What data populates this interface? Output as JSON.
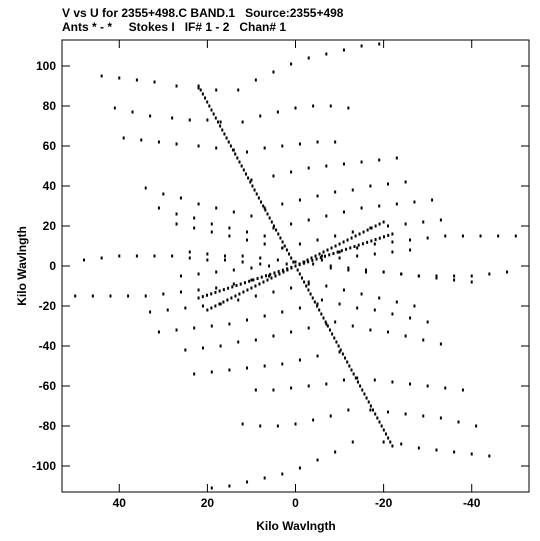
{
  "header": {
    "line1": "V vs U for 2355+498.C BAND.1   Source:2355+498",
    "line2": "Ants * - *     Stokes I   IF# 1 - 2   Chan# 1"
  },
  "chart_data": {
    "type": "scatter",
    "title": "V vs U for 2355+498.C BAND.1   Source:2355+498",
    "subtitle": "Ants * - *     Stokes I   IF# 1 - 2   Chan# 1",
    "xlabel": "Kilo Wavlngth",
    "ylabel": "Kilo Wavlngth",
    "xlim": [
      53,
      -53
    ],
    "ylim": [
      -113,
      113
    ],
    "x_reversed": true,
    "x_ticks": [
      "40",
      "20",
      "0",
      "-20",
      "-40"
    ],
    "x_tick_values": [
      40,
      20,
      0,
      -20,
      -40
    ],
    "y_ticks": [
      "100",
      "80",
      "60",
      "40",
      "20",
      "0",
      "-20",
      "-40",
      "-60",
      "-80",
      "-100"
    ],
    "y_tick_values": [
      100,
      80,
      60,
      40,
      20,
      0,
      -20,
      -40,
      -60,
      -80,
      -100
    ],
    "grid": false,
    "marker_color": "#000000",
    "tracks": [
      {
        "x": [
          44,
          40,
          36,
          32,
          27,
          22,
          18
        ],
        "y": [
          95,
          94,
          93,
          92,
          90,
          89,
          88
        ]
      },
      {
        "x": [
          41,
          37,
          33,
          28,
          24,
          20,
          17
        ],
        "y": [
          79,
          77,
          75,
          74,
          73,
          73,
          72
        ]
      },
      {
        "x": [
          39,
          35,
          31,
          27,
          22,
          18,
          14
        ],
        "y": [
          64,
          63,
          62,
          61,
          60,
          59,
          58
        ]
      },
      {
        "x": [
          34,
          30,
          26,
          22,
          18,
          14,
          10
        ],
        "y": [
          39,
          36,
          34,
          31,
          29,
          27,
          25
        ]
      },
      {
        "x": [
          31,
          27,
          23,
          19,
          15,
          11,
          7
        ],
        "y": [
          29,
          26,
          24,
          21,
          19,
          17,
          15
        ]
      },
      {
        "x": [
          27,
          23,
          19,
          15,
          11,
          7,
          3
        ],
        "y": [
          21,
          19,
          17,
          15,
          13,
          11,
          9
        ]
      },
      {
        "x": [
          13,
          9,
          5,
          1,
          -3,
          -7,
          -11,
          -15,
          -19
        ],
        "y": [
          88,
          93,
          97,
          101,
          104,
          106,
          108,
          110,
          111
        ]
      },
      {
        "x": [
          12,
          8,
          4,
          0,
          -4,
          -8,
          -12
        ],
        "y": [
          72,
          75,
          77,
          79,
          80,
          80,
          79
        ]
      },
      {
        "x": [
          11,
          7,
          3,
          -1,
          -5,
          -9
        ],
        "y": [
          57,
          59,
          60,
          61,
          62,
          62
        ]
      },
      {
        "x": [
          10,
          5,
          1,
          -3,
          -7,
          -11,
          -15,
          -19,
          -23
        ],
        "y": [
          43,
          45,
          47,
          49,
          50,
          51,
          52,
          53,
          54
        ]
      },
      {
        "x": [
          7,
          3,
          -1,
          -5,
          -9,
          -13,
          -17,
          -21,
          -25
        ],
        "y": [
          29,
          31,
          33,
          35,
          37,
          38,
          40,
          41,
          42
        ]
      },
      {
        "x": [
          5,
          1,
          -3,
          -7,
          -11,
          -15,
          -19,
          -23,
          -27,
          -31
        ],
        "y": [
          19,
          21,
          23,
          25,
          27,
          29,
          30,
          31,
          32,
          33
        ]
      },
      {
        "x": [
          3,
          -1,
          -5,
          -9,
          -13,
          -17,
          -21,
          -25,
          -29,
          -33
        ],
        "y": [
          9,
          11,
          13,
          15,
          17,
          19,
          20,
          21,
          22,
          23
        ]
      },
      {
        "x": [
          -20,
          -24,
          -28,
          -32,
          -36,
          -40,
          -44
        ],
        "y": [
          -88,
          -89,
          -91,
          -92,
          -93,
          -94,
          -95
        ]
      },
      {
        "x": [
          -17,
          -21,
          -25,
          -29,
          -33,
          -37,
          -41
        ],
        "y": [
          -72,
          -73,
          -74,
          -75,
          -76,
          -78,
          -80
        ]
      },
      {
        "x": [
          -14,
          -18,
          -22,
          -26,
          -30,
          -34,
          -38
        ],
        "y": [
          -56,
          -57,
          -58,
          -59,
          -60,
          -61,
          -62
        ]
      },
      {
        "x": [
          -9,
          -13,
          -17,
          -21,
          -25,
          -29,
          -33
        ],
        "y": [
          -28,
          -30,
          -32,
          -33,
          -35,
          -37,
          -39
        ]
      },
      {
        "x": [
          -6,
          -10,
          -14,
          -18,
          -22,
          -26,
          -30
        ],
        "y": [
          -17,
          -19,
          -21,
          -22,
          -24,
          -26,
          -28
        ]
      },
      {
        "x": [
          -3,
          -7,
          -11,
          -15,
          -19,
          -23,
          -27
        ],
        "y": [
          -8,
          -10,
          -12,
          -14,
          -16,
          -18,
          -20
        ]
      },
      {
        "x": [
          -13,
          -9,
          -5,
          -1,
          3,
          7,
          11,
          15,
          19
        ],
        "y": [
          -88,
          -93,
          -97,
          -101,
          -104,
          -106,
          -108,
          -110,
          -111
        ]
      },
      {
        "x": [
          -12,
          -8,
          -4,
          0,
          4,
          8,
          12
        ],
        "y": [
          -72,
          -75,
          -77,
          -79,
          -80,
          -80,
          -79
        ]
      },
      {
        "x": [
          -11,
          -7,
          -3,
          1,
          5,
          9
        ],
        "y": [
          -57,
          -59,
          -60,
          -61,
          -62,
          -62
        ]
      },
      {
        "x": [
          -10,
          -5,
          -1,
          3,
          7,
          11,
          15,
          19,
          23
        ],
        "y": [
          -43,
          -45,
          -47,
          -49,
          -50,
          -51,
          -52,
          -53,
          -54
        ]
      },
      {
        "x": [
          -7,
          -3,
          1,
          5,
          9,
          13,
          17,
          21,
          25
        ],
        "y": [
          -29,
          -31,
          -33,
          -35,
          -37,
          -38,
          -40,
          -41,
          -42
        ]
      },
      {
        "x": [
          -5,
          -1,
          3,
          7,
          11,
          15,
          19,
          23,
          27,
          31
        ],
        "y": [
          -19,
          -21,
          -23,
          -25,
          -27,
          -29,
          -30,
          -31,
          -32,
          -33
        ]
      },
      {
        "x": [
          -3,
          1,
          5,
          9,
          13,
          17,
          21,
          25,
          29,
          33
        ],
        "y": [
          -9,
          -11,
          -13,
          -15,
          -17,
          -19,
          -20,
          -21,
          -22,
          -23
        ]
      },
      {
        "x": [
          -6,
          -10,
          -14,
          -18,
          -22,
          -26,
          -30,
          -34,
          -38,
          -42,
          -46,
          -50
        ],
        "y": [
          5,
          7,
          9,
          11,
          12,
          13,
          14,
          15,
          15,
          15,
          15,
          15
        ]
      },
      {
        "x": [
          -8,
          -12,
          -16,
          -20,
          -24,
          -28,
          -32,
          -36,
          -40,
          -44,
          -48
        ],
        "y": [
          -1,
          -2,
          -3,
          -3,
          -4,
          -5,
          -5,
          -5,
          -5,
          -4,
          -3
        ]
      },
      {
        "x": [
          6,
          10,
          14,
          18,
          22,
          26,
          30,
          34,
          38,
          42,
          46,
          50
        ],
        "y": [
          -5,
          -7,
          -9,
          -11,
          -12,
          -13,
          -14,
          -15,
          -15,
          -15,
          -15,
          -15
        ]
      },
      {
        "x": [
          8,
          12,
          16,
          20,
          24,
          28,
          32,
          36,
          40,
          44,
          48
        ],
        "y": [
          1,
          2,
          3,
          3,
          4,
          5,
          5,
          5,
          5,
          4,
          3
        ]
      },
      {
        "x": [
          24,
          20,
          16,
          12,
          8,
          4,
          0,
          -4,
          -8,
          -12,
          -16,
          -20,
          -24,
          -28,
          -32,
          -36,
          -40
        ],
        "y": [
          7,
          6,
          5,
          5,
          4,
          3,
          2,
          1,
          0,
          -1,
          -2,
          -3,
          -4,
          -5,
          -6,
          -7,
          -8
        ]
      },
      {
        "x": [
          26,
          22,
          18,
          14,
          10,
          6,
          2,
          -2,
          -6,
          -10,
          -14,
          -18,
          -22,
          -26
        ],
        "y": [
          -5,
          -4,
          -3,
          -2,
          -1,
          0,
          1,
          2,
          3,
          4,
          5,
          6,
          7,
          8
        ]
      }
    ],
    "spokes": [
      {
        "from": [
          22,
          90
        ],
        "to": [
          0,
          0
        ]
      },
      {
        "from": [
          0,
          0
        ],
        "to": [
          -22,
          -90
        ]
      },
      {
        "from": [
          20,
          -22
        ],
        "to": [
          -20,
          22
        ]
      },
      {
        "from": [
          0,
          0
        ],
        "to": [
          -22,
          16
        ]
      },
      {
        "from": [
          0,
          0
        ],
        "to": [
          22,
          -16
        ]
      }
    ]
  }
}
